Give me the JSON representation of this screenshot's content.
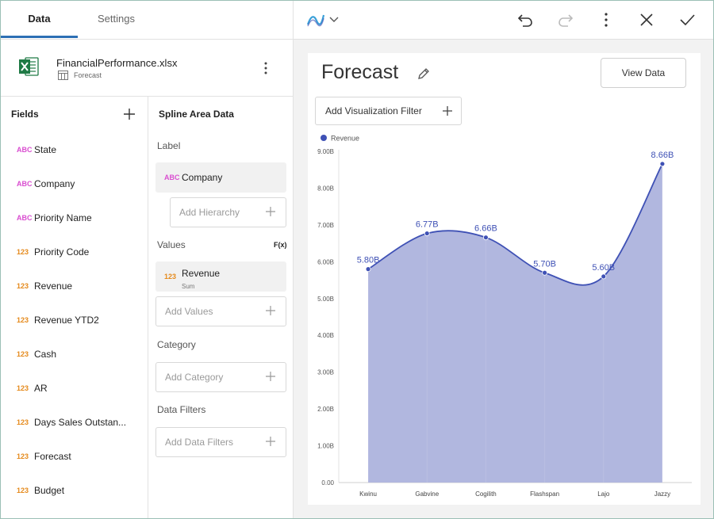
{
  "tabs": {
    "data": "Data",
    "settings": "Settings"
  },
  "file": {
    "name": "FinancialPerformance.xlsx",
    "sheet": "Forecast"
  },
  "fields": {
    "title": "Fields",
    "items": [
      {
        "type": "ABC",
        "name": "State"
      },
      {
        "type": "ABC",
        "name": "Company"
      },
      {
        "type": "ABC",
        "name": "Priority Name"
      },
      {
        "type": "123",
        "name": "Priority Code"
      },
      {
        "type": "123",
        "name": "Revenue"
      },
      {
        "type": "123",
        "name": "Revenue YTD2"
      },
      {
        "type": "123",
        "name": "Cash"
      },
      {
        "type": "123",
        "name": "AR"
      },
      {
        "type": "123",
        "name": "Days Sales Outstan..."
      },
      {
        "type": "123",
        "name": "Forecast"
      },
      {
        "type": "123",
        "name": "Budget"
      }
    ]
  },
  "config": {
    "title": "Spline Area Data",
    "label_section": "Label",
    "label_field": {
      "type": "ABC",
      "name": "Company"
    },
    "add_hierarchy": "Add Hierarchy",
    "values_section": "Values",
    "fx": "F(x)",
    "value_field": {
      "type": "123",
      "name": "Revenue",
      "agg": "Sum"
    },
    "add_values": "Add Values",
    "category_section": "Category",
    "add_category": "Add Category",
    "filters_section": "Data Filters",
    "add_filters": "Add Data Filters"
  },
  "toolbar": {
    "chart_type_icon": "spline-chart-icon",
    "undo_icon": "undo-icon",
    "redo_icon": "redo-icon",
    "more_icon": "more-vertical-icon",
    "close_icon": "close-icon",
    "confirm_icon": "check-icon"
  },
  "card": {
    "title": "Forecast",
    "view_data": "View Data",
    "add_filter": "Add Visualization Filter"
  },
  "colors": {
    "accent": "#2d6fb4",
    "series": "#3f51b5",
    "area": "#b1b7df"
  },
  "chart_data": {
    "type": "area",
    "legend_position": "top-left",
    "categories": [
      "Kwinu",
      "Gabvine",
      "Cogilith",
      "Flashspan",
      "Lajo",
      "Jazzy"
    ],
    "series": [
      {
        "name": "Revenue",
        "values": [
          5.8,
          6.77,
          6.66,
          5.7,
          5.6,
          8.66
        ],
        "labels": [
          "5.80B",
          "6.77B",
          "6.66B",
          "5.70B",
          "5.60B",
          "8.66B"
        ]
      }
    ],
    "yticks": [
      "0.00",
      "1.00B",
      "2.00B",
      "3.00B",
      "4.00B",
      "5.00B",
      "6.00B",
      "7.00B",
      "8.00B",
      "9.00B"
    ],
    "ylim": [
      0,
      9
    ],
    "grid": false
  }
}
